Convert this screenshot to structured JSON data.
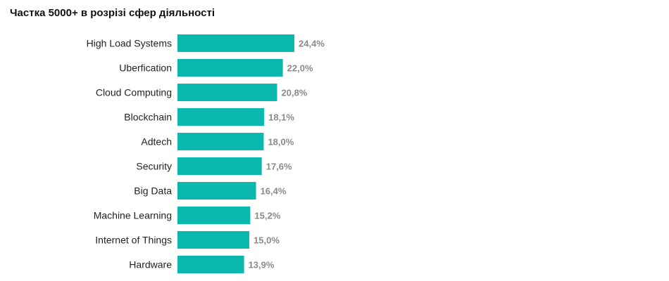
{
  "chart_data": {
    "type": "bar",
    "orientation": "horizontal",
    "title": "Частка 5000+ в розрізі сфер діяльності",
    "categories": [
      "High Load Systems",
      "Uberfication",
      "Cloud Computing",
      "Blockchain",
      "Adtech",
      "Security",
      "Big Data",
      "Machine Learning",
      "Internet of Things",
      "Hardware"
    ],
    "values": [
      24.4,
      22.0,
      20.8,
      18.1,
      18.0,
      17.6,
      16.4,
      15.2,
      15.0,
      13.9
    ],
    "value_labels": [
      "24,4%",
      "22,0%",
      "20,8%",
      "18,1%",
      "18,0%",
      "17,6%",
      "16,4%",
      "15,2%",
      "15,0%",
      "13,9%"
    ],
    "unit": "%",
    "grid": false,
    "legend": "none",
    "colors": {
      "bar": "#0ab8ae",
      "value_label": "#8a8a8a",
      "category_label": "#222222",
      "title": "#111111"
    }
  }
}
